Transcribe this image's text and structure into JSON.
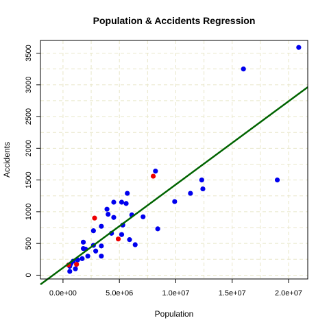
{
  "chart_data": {
    "type": "scatter",
    "title": "Population & Accidents Regression",
    "xlabel": "Population",
    "ylabel": "Accidents",
    "xlim": [
      -2000000,
      21700000
    ],
    "ylim": [
      -60,
      3700
    ],
    "x_ticks": [
      0,
      5000000,
      10000000,
      15000000,
      20000000
    ],
    "x_tick_labels": [
      "0.0e+00",
      "5.0e+06",
      "1.0e+07",
      "1.5e+07",
      "2.0e+07"
    ],
    "y_ticks": [
      0,
      500,
      1000,
      1500,
      2000,
      2500,
      3000,
      3500
    ],
    "y_tick_labels": [
      "0",
      "500",
      "1000",
      "1500",
      "2000",
      "2500",
      "3000",
      "3500"
    ],
    "grid": true,
    "series": [
      {
        "color": "#0000ee",
        "points": [
          [
            20900000,
            3590
          ],
          [
            16000000,
            3250
          ],
          [
            19000000,
            1500
          ],
          [
            12300000,
            1500
          ],
          [
            12400000,
            1360
          ],
          [
            11300000,
            1290
          ],
          [
            8200000,
            1640
          ],
          [
            9900000,
            1160
          ],
          [
            8400000,
            730
          ],
          [
            7100000,
            920
          ],
          [
            6400000,
            480
          ],
          [
            6100000,
            950
          ],
          [
            5900000,
            560
          ],
          [
            5700000,
            1290
          ],
          [
            5600000,
            1130
          ],
          [
            5300000,
            790
          ],
          [
            5200000,
            1150
          ],
          [
            5200000,
            640
          ],
          [
            4500000,
            1150
          ],
          [
            4500000,
            910
          ],
          [
            4300000,
            660
          ],
          [
            4000000,
            960
          ],
          [
            3900000,
            1040
          ],
          [
            3400000,
            770
          ],
          [
            3400000,
            460
          ],
          [
            3400000,
            300
          ],
          [
            2900000,
            380
          ],
          [
            2700000,
            700
          ],
          [
            2700000,
            470
          ],
          [
            2200000,
            300
          ],
          [
            2000000,
            410
          ],
          [
            1800000,
            520
          ],
          [
            1800000,
            420
          ],
          [
            1700000,
            260
          ],
          [
            1300000,
            240
          ],
          [
            1100000,
            100
          ],
          [
            900000,
            220
          ],
          [
            700000,
            180
          ],
          [
            600000,
            140
          ],
          [
            600000,
            60
          ],
          [
            500000,
            160
          ]
        ]
      },
      {
        "color": "#ee0000",
        "points": [
          [
            8000000,
            1560
          ],
          [
            2800000,
            900
          ],
          [
            4900000,
            570
          ],
          [
            1200000,
            170
          ],
          [
            500000,
            160
          ]
        ]
      }
    ],
    "regression_line": {
      "color": "#006400",
      "intercept": 116,
      "slope": 0.00013125
    }
  }
}
